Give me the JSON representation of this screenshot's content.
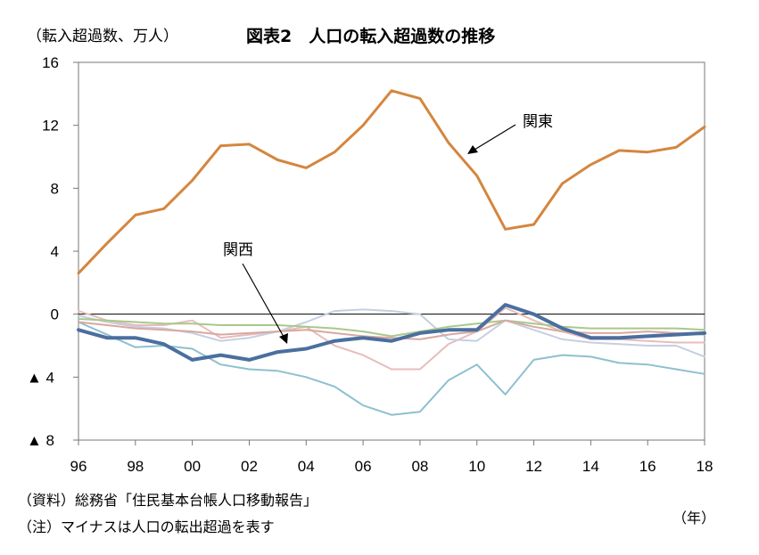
{
  "header": {
    "unit": "（転入超過数、万人）",
    "title": "図表2　人口の転入超過数の推移"
  },
  "footer": {
    "source": "（資料）総務省「住民基本台帳人口移動報告」",
    "note": "（注）マイナスは人口の転出超過を表す",
    "x_unit": "（年）"
  },
  "chart_data": {
    "type": "line",
    "x": [
      1996,
      1997,
      1998,
      1999,
      2000,
      2001,
      2002,
      2003,
      2004,
      2005,
      2006,
      2007,
      2008,
      2009,
      2010,
      2011,
      2012,
      2013,
      2014,
      2015,
      2016,
      2017,
      2018
    ],
    "x_tick_labels": [
      "96",
      "98",
      "00",
      "02",
      "04",
      "06",
      "08",
      "10",
      "12",
      "14",
      "16",
      "18"
    ],
    "x_tick_values": [
      1996,
      1998,
      2000,
      2002,
      2004,
      2006,
      2008,
      2010,
      2012,
      2014,
      2016,
      2018
    ],
    "xlim": [
      1996,
      2018
    ],
    "ylim": [
      -8,
      16
    ],
    "y_ticks": [
      {
        "value": 16,
        "label": "16"
      },
      {
        "value": 12,
        "label": "12"
      },
      {
        "value": 8,
        "label": "8"
      },
      {
        "value": 4,
        "label": "4"
      },
      {
        "value": 0,
        "label": "0"
      },
      {
        "value": -4,
        "label": "▲ 4"
      },
      {
        "value": -8,
        "label": "▲ 8"
      }
    ],
    "grid": false,
    "zero_line": true,
    "annotations": [
      {
        "text": "関東",
        "series": "関東",
        "x": 2009.6,
        "y": 10.6
      },
      {
        "text": "関西",
        "series": "関西",
        "x": 2003.3,
        "y": 3.6
      }
    ],
    "series": [
      {
        "name": "関東",
        "color": "#d4863f",
        "width": 3,
        "values": [
          2.6,
          4.5,
          6.3,
          6.7,
          8.5,
          10.7,
          10.8,
          9.8,
          9.3,
          10.3,
          12.0,
          14.2,
          13.7,
          10.9,
          8.8,
          5.4,
          5.7,
          8.3,
          9.5,
          10.4,
          10.3,
          10.6,
          11.9
        ]
      },
      {
        "name": "関西",
        "color": "#4a6f9f",
        "width": 4,
        "values": [
          -1.0,
          -1.5,
          -1.5,
          -1.9,
          -2.9,
          -2.6,
          -2.9,
          -2.4,
          -2.2,
          -1.7,
          -1.5,
          -1.7,
          -1.2,
          -1.0,
          -1.0,
          0.6,
          0.0,
          -0.9,
          -1.5,
          -1.5,
          -1.4,
          -1.3,
          -1.2
        ]
      },
      {
        "color": "#8ec0cf",
        "width": 2,
        "values": [
          -0.5,
          -1.3,
          -2.1,
          -2.0,
          -2.2,
          -3.2,
          -3.5,
          -3.6,
          -4.0,
          -4.6,
          -5.8,
          -6.4,
          -6.2,
          -4.2,
          -3.2,
          -5.1,
          -2.9,
          -2.6,
          -2.7,
          -3.1,
          -3.2,
          -3.5,
          -3.8
        ]
      },
      {
        "color": "#e8bcbc",
        "width": 2,
        "values": [
          0.2,
          -0.4,
          -0.7,
          -0.7,
          -0.4,
          -1.5,
          -1.3,
          -1.1,
          -0.8,
          -2.0,
          -2.6,
          -3.5,
          -3.5,
          -1.9,
          -1.1,
          0.4,
          -0.4,
          -1.1,
          -1.6,
          -1.6,
          -1.7,
          -1.8,
          -1.8
        ]
      },
      {
        "color": "#c4d0e0",
        "width": 2,
        "values": [
          -0.1,
          -0.5,
          -0.8,
          -0.9,
          -1.2,
          -1.7,
          -1.5,
          -1.1,
          -0.5,
          0.2,
          0.3,
          0.2,
          0.0,
          -1.6,
          -1.7,
          -0.4,
          -1.0,
          -1.6,
          -1.8,
          -1.9,
          -2.0,
          -2.0,
          -2.7
        ]
      },
      {
        "color": "#a9c88a",
        "width": 2,
        "values": [
          -0.3,
          -0.4,
          -0.5,
          -0.6,
          -0.6,
          -0.7,
          -0.7,
          -0.7,
          -0.8,
          -0.9,
          -1.1,
          -1.4,
          -1.1,
          -0.8,
          -0.6,
          -0.4,
          -0.6,
          -0.8,
          -0.9,
          -0.9,
          -0.9,
          -0.9,
          -1.0
        ]
      },
      {
        "color": "#d9a8a0",
        "width": 2,
        "values": [
          -0.5,
          -0.7,
          -0.9,
          -1.0,
          -1.1,
          -1.3,
          -1.2,
          -1.1,
          -1.0,
          -1.2,
          -1.4,
          -1.5,
          -1.6,
          -1.3,
          -1.1,
          -0.4,
          -0.8,
          -1.1,
          -1.2,
          -1.2,
          -1.1,
          -1.2,
          -1.3
        ]
      }
    ]
  }
}
